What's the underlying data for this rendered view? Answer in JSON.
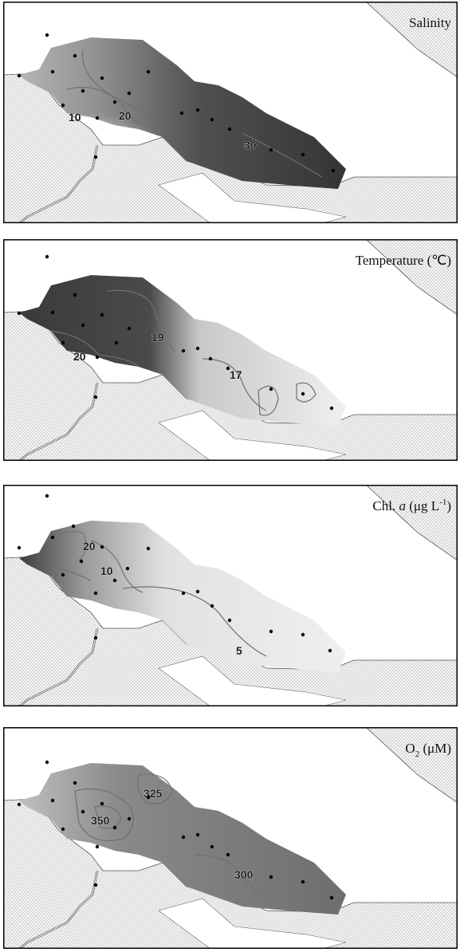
{
  "panels": [
    {
      "title": "Salinity",
      "contour_labels": [
        "10",
        "20",
        "30"
      ]
    },
    {
      "title": "Temperature (℃)",
      "contour_labels": [
        "20",
        "19",
        "17"
      ]
    },
    {
      "title_parts": {
        "prefix": "Chl. ",
        "italic": "a",
        "unit": " (μg L",
        "sup": "-1",
        "close": ")"
      },
      "contour_labels": [
        "20",
        "10",
        "5"
      ]
    },
    {
      "title_parts": {
        "base": "O",
        "sub": "2",
        "unit": " (μM)"
      },
      "contour_labels": [
        "325",
        "350",
        "300"
      ]
    }
  ],
  "colors": {
    "land_fill": "#f2f2f2",
    "land_dots": "#9a9a9a",
    "contour_line": "#6f6f6f",
    "station_dot": "#000000",
    "frame": "#000000"
  }
}
